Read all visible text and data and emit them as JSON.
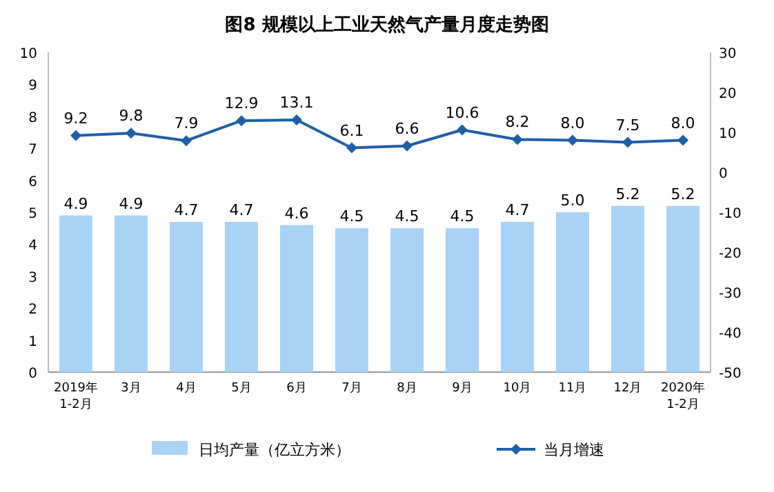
{
  "chart_data": {
    "type": "bar",
    "title": "图8  规模以上工业天然气产量月度走势图",
    "categories": [
      "2019年\n1-2月",
      "3月",
      "4月",
      "5月",
      "6月",
      "7月",
      "8月",
      "9月",
      "10月",
      "11月",
      "12月",
      "2020年\n1-2月"
    ],
    "series": [
      {
        "name": "日均产量（亿立方米）",
        "color": "#a9d3f5",
        "values": [
          4.9,
          4.9,
          4.7,
          4.7,
          4.6,
          4.5,
          4.5,
          4.5,
          4.7,
          5.0,
          5.2,
          5.2
        ],
        "value_labels": [
          "4.9",
          "4.9",
          "4.7",
          "4.7",
          "4.6",
          "4.5",
          "4.5",
          "4.5",
          "4.7",
          "5.0",
          "5.2",
          "5.2"
        ]
      },
      {
        "name": "当月增速",
        "type": "line",
        "axis": "y2",
        "color": "#1f5fa8",
        "marker": "diamond",
        "values": [
          9.2,
          9.8,
          7.9,
          12.9,
          13.1,
          6.1,
          6.6,
          10.6,
          8.2,
          8.0,
          7.5,
          8.0
        ],
        "value_labels": [
          "9.2",
          "9.8",
          "7.9",
          "12.9",
          "13.1",
          "6.1",
          "6.6",
          "10.6",
          "8.2",
          "8.0",
          "7.5",
          "8.0"
        ]
      }
    ],
    "ylim": [
      0,
      10
    ],
    "yticks": [
      0,
      1,
      2,
      3,
      4,
      5,
      6,
      7,
      8,
      9,
      10
    ],
    "y2lim": [
      -50,
      30
    ],
    "y2ticks": [
      -50,
      -40,
      -30,
      -20,
      -10,
      0,
      10,
      20,
      30
    ],
    "grid": false,
    "legend": "bottom"
  }
}
